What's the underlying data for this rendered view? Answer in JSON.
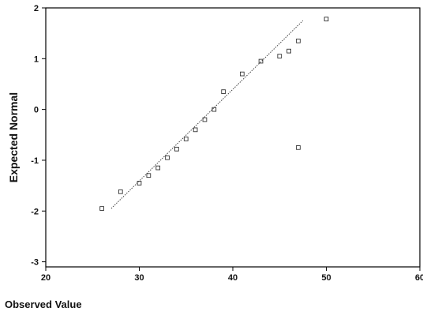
{
  "chart_data": {
    "type": "scatter",
    "title": "",
    "xlabel": "Observed Value",
    "ylabel": "Expected Normal",
    "xlim": [
      20,
      60
    ],
    "ylim": [
      -3.1,
      2
    ],
    "x_ticks": [
      "20",
      "30",
      "40",
      "50",
      "60"
    ],
    "y_ticks": [
      "-3",
      "-2",
      "-1",
      "0",
      "1",
      "2"
    ],
    "grid": false,
    "legend": "none",
    "reference_line": {
      "x": [
        27,
        47.5
      ],
      "y": [
        -1.95,
        1.75
      ]
    },
    "points": [
      {
        "x": 26,
        "y": -1.95
      },
      {
        "x": 28,
        "y": -1.62
      },
      {
        "x": 30,
        "y": -1.45
      },
      {
        "x": 31,
        "y": -1.3
      },
      {
        "x": 32,
        "y": -1.15
      },
      {
        "x": 33,
        "y": -0.95
      },
      {
        "x": 34,
        "y": -0.78
      },
      {
        "x": 35,
        "y": -0.58
      },
      {
        "x": 36,
        "y": -0.4
      },
      {
        "x": 37,
        "y": -0.2
      },
      {
        "x": 38,
        "y": 0.0
      },
      {
        "x": 39,
        "y": 0.35
      },
      {
        "x": 41,
        "y": 0.7
      },
      {
        "x": 43,
        "y": 0.95
      },
      {
        "x": 45,
        "y": 1.05
      },
      {
        "x": 46,
        "y": 1.15
      },
      {
        "x": 47,
        "y": 1.35
      },
      {
        "x": 50,
        "y": 1.78
      },
      {
        "x": 47,
        "y": -0.75
      }
    ]
  }
}
